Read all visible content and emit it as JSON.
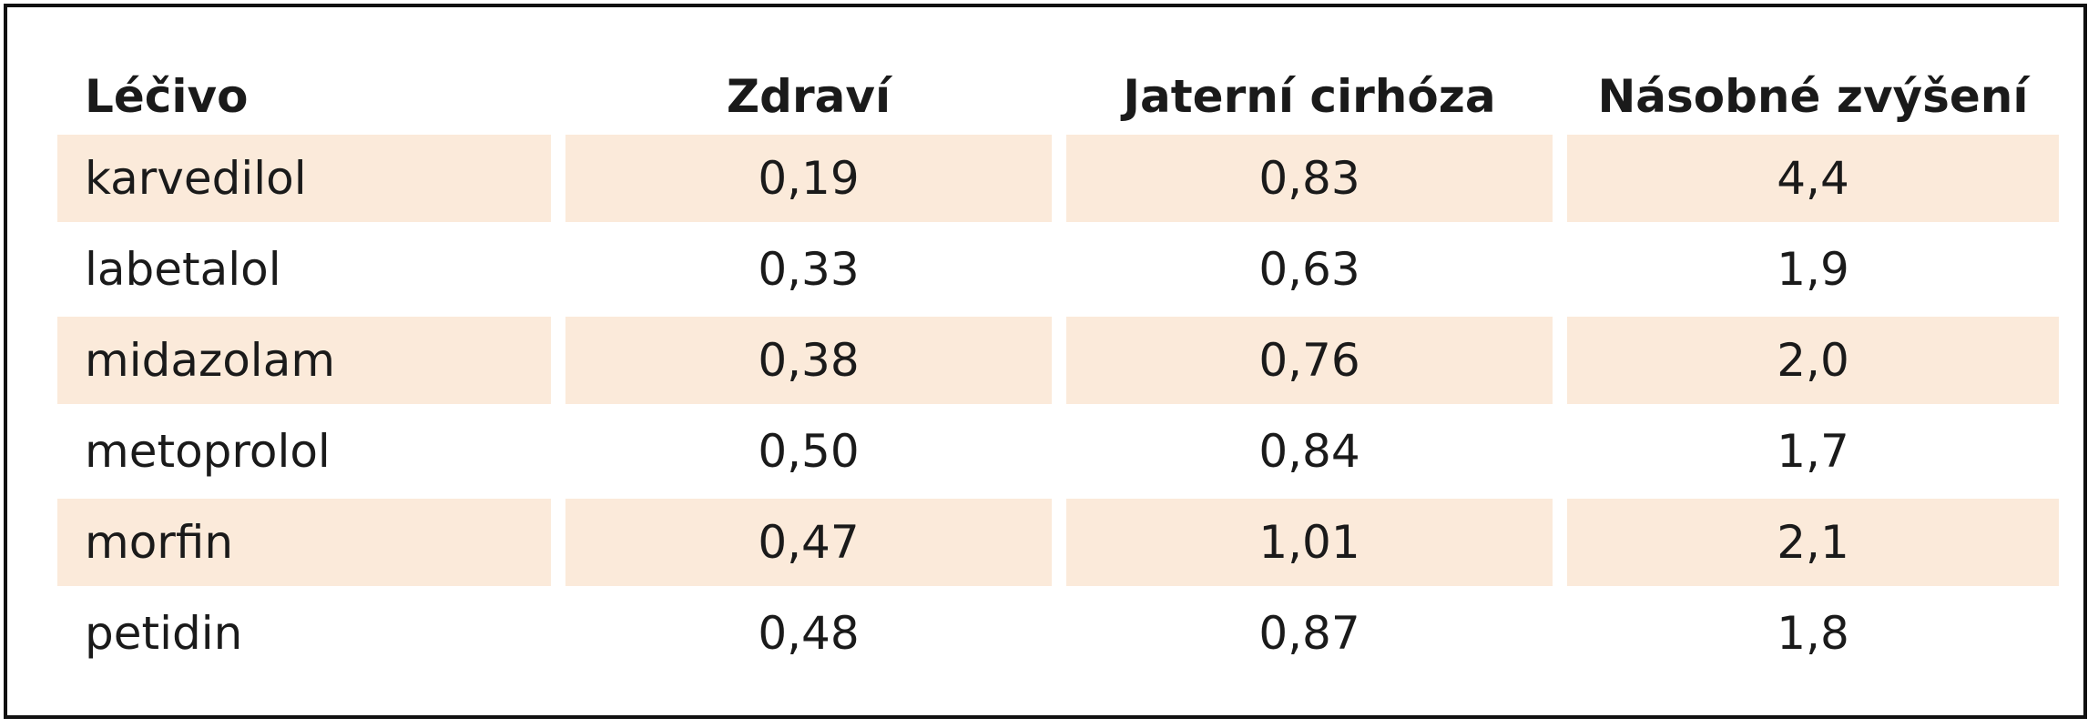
{
  "table": {
    "headers": [
      "Léčivo",
      "Zdraví",
      "Jaterní cirhóza",
      "Násobné zvýšení"
    ],
    "rows": [
      [
        "karvedilol",
        "0,19",
        "0,83",
        "4,4"
      ],
      [
        "labetalol",
        "0,33",
        "0,63",
        "1,9"
      ],
      [
        "midazolam",
        "0,38",
        "0,76",
        "2,0"
      ],
      [
        "metoprolol",
        "0,50",
        "0,84",
        "1,7"
      ],
      [
        "morfin",
        "0,47",
        "1,01",
        "2,1"
      ],
      [
        "petidin",
        "0,48",
        "0,87",
        "1,8"
      ]
    ],
    "row_shade_color": "#fbeada",
    "border_color": "#111111"
  }
}
